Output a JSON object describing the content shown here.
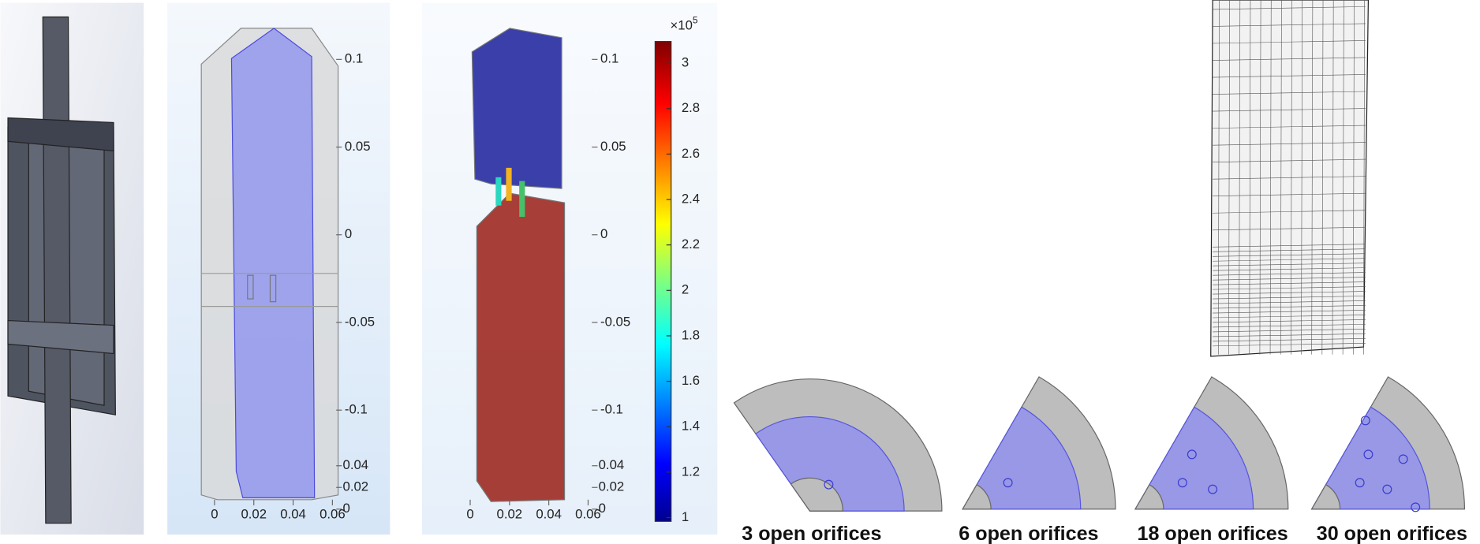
{
  "panels": [
    {
      "z_ticks": [
        0.1,
        0.05,
        0,
        -0.05,
        -0.1
      ],
      "y_ticks": [
        0.04,
        0.02,
        0
      ],
      "x_ticks": [
        0,
        0.02,
        0.04,
        0.06
      ]
    },
    {
      "z_ticks": [
        0.1,
        0.05,
        0,
        -0.05,
        -0.1
      ],
      "y_ticks": [
        0.04,
        0.02,
        0
      ],
      "x_ticks": [
        0,
        0.02,
        0.04,
        0.06
      ]
    }
  ],
  "colorbar": {
    "multiplier": "×10",
    "exponent": "5",
    "ticks": [
      1,
      1.2,
      1.4,
      1.6,
      1.8,
      2,
      2.2,
      2.4,
      2.6,
      2.8,
      3
    ]
  },
  "captions": [
    "3 open orifices",
    "6 open orifices",
    "18 open orifices",
    "30 open orifices"
  ]
}
